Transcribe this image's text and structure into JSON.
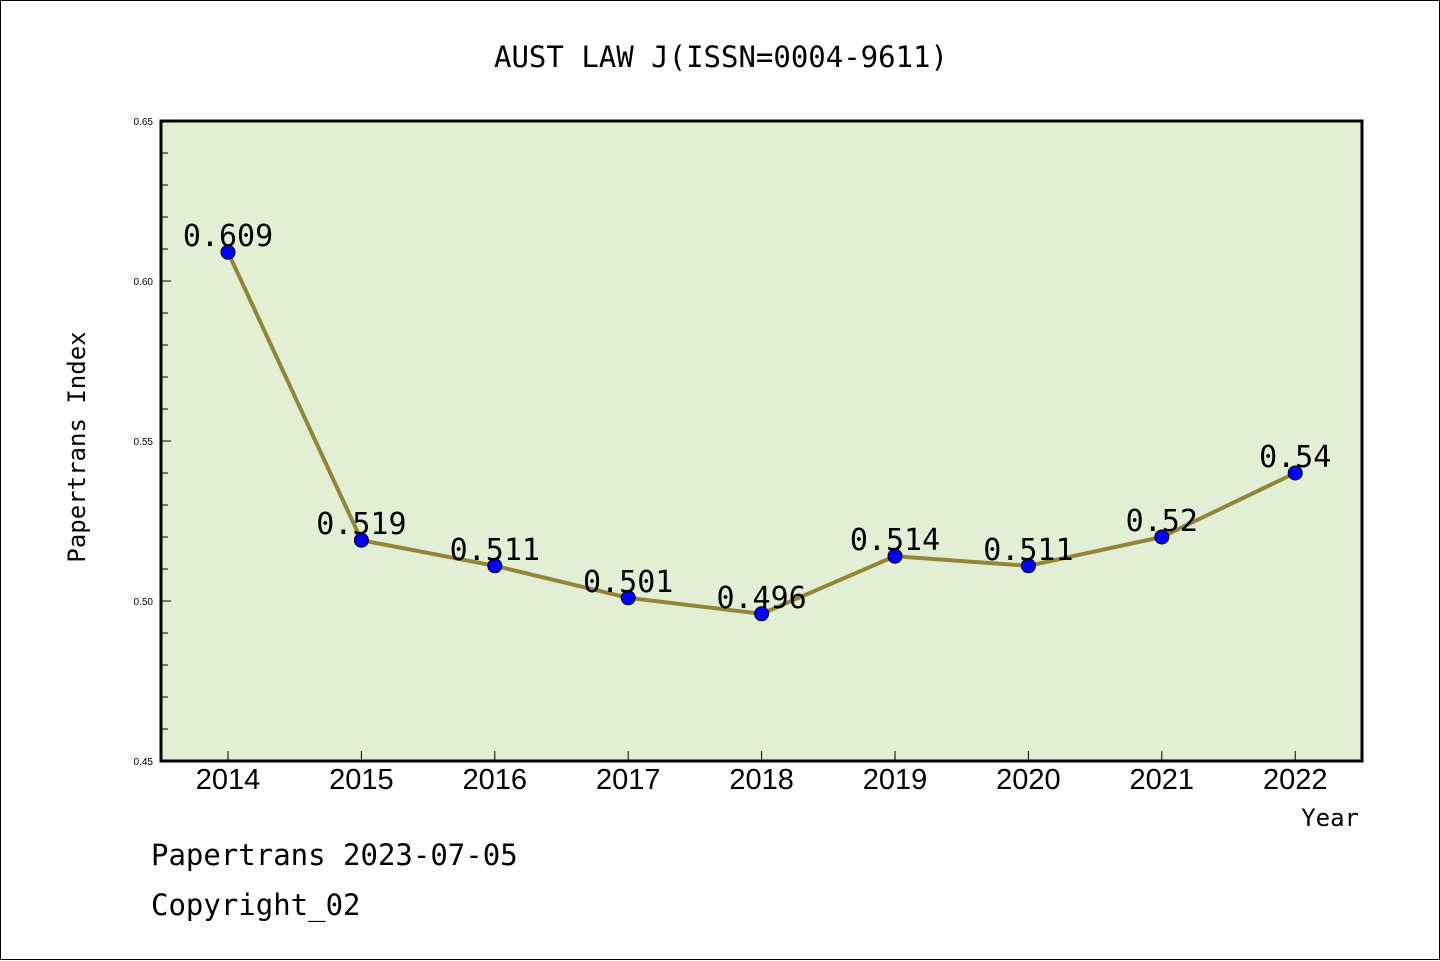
{
  "chart_data": {
    "type": "line",
    "title": "AUST LAW J(ISSN=0004-9611)",
    "xlabel": "Year",
    "ylabel": "Papertrans Index",
    "categories": [
      "2014",
      "2015",
      "2016",
      "2017",
      "2018",
      "2019",
      "2020",
      "2021",
      "2022"
    ],
    "values": [
      0.609,
      0.519,
      0.511,
      0.501,
      0.496,
      0.514,
      0.511,
      0.52,
      0.54
    ],
    "data_labels": [
      "0.609",
      "0.519",
      "0.511",
      "0.501",
      "0.496",
      "0.514",
      "0.511",
      "0.52",
      "0.54"
    ],
    "ylim": [
      0.45,
      0.65
    ],
    "yticks": [
      0.45,
      0.5,
      0.55,
      0.6,
      0.65
    ],
    "ytick_labels": [
      "0.45",
      "0.50",
      "0.55",
      "0.60",
      "0.65"
    ],
    "grid": false,
    "legend": "none",
    "colors": {
      "plot_background": "#e2efd4",
      "line": "#948437",
      "marker": "#0000ff",
      "axis": "#000000"
    }
  },
  "footer": {
    "source": "Papertrans 2023-07-05",
    "copyright": "Copyright_02"
  }
}
